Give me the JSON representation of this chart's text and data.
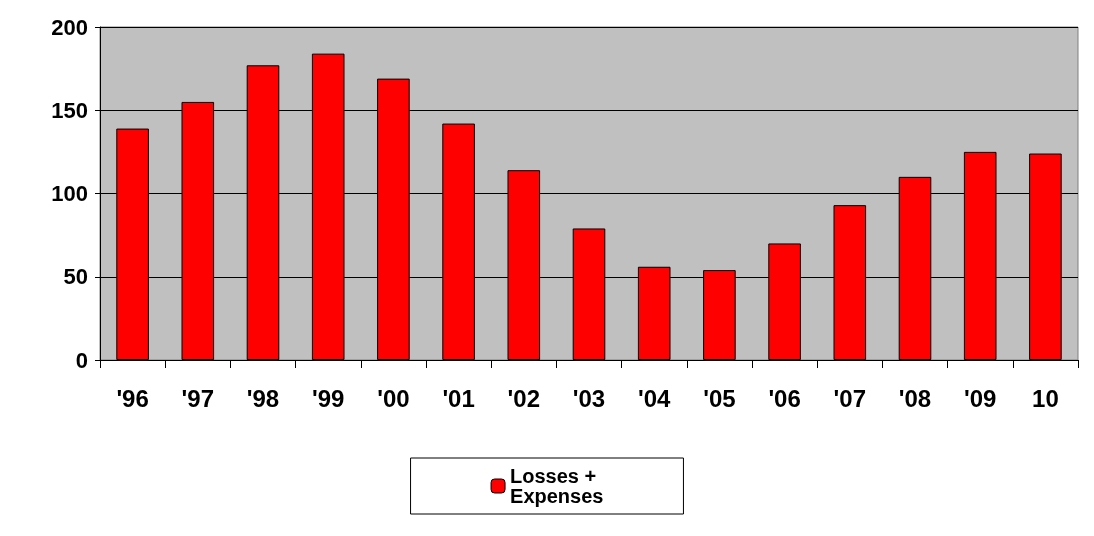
{
  "chart_data": {
    "type": "bar",
    "categories": [
      "'96",
      "'97",
      "'98",
      "'99",
      "'00",
      "'01",
      "'02",
      "'03",
      "'04",
      "'05",
      "'06",
      "'07",
      "'08",
      "'09",
      "10"
    ],
    "series": [
      {
        "name": "Losses + Expenses",
        "color": "#ff0000",
        "values": [
          139,
          155,
          177,
          184,
          169,
          142,
          114,
          79,
          56,
          54,
          70,
          93,
          110,
          125,
          124
        ]
      }
    ],
    "ylim": [
      0,
      200
    ],
    "yticks": [
      0,
      50,
      100,
      150,
      200
    ],
    "grid": "y",
    "legend": "bottom"
  }
}
